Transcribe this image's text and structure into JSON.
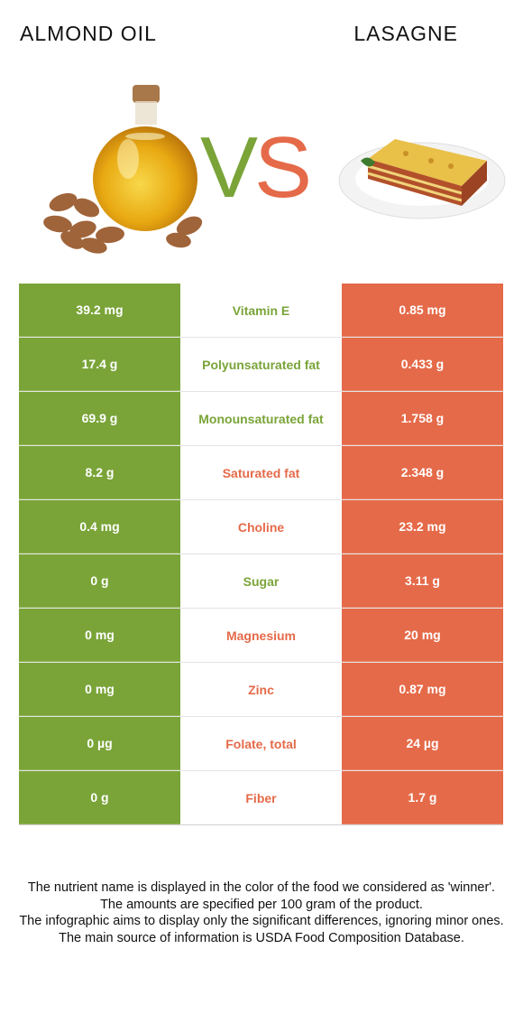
{
  "header": {
    "left_food": "ALMOND OIL",
    "right_food": "LASAGNE",
    "vs_v": "V",
    "vs_s": "S"
  },
  "colors": {
    "left_winner": "#7aa438",
    "right_winner": "#e56a49"
  },
  "rows": [
    {
      "nutrient": "Vitamin E",
      "left": "39.2 mg",
      "right": "0.85 mg",
      "winner": "left"
    },
    {
      "nutrient": "Polyunsaturated fat",
      "left": "17.4 g",
      "right": "0.433 g",
      "winner": "left"
    },
    {
      "nutrient": "Monounsaturated fat",
      "left": "69.9 g",
      "right": "1.758 g",
      "winner": "left"
    },
    {
      "nutrient": "Saturated fat",
      "left": "8.2 g",
      "right": "2.348 g",
      "winner": "right"
    },
    {
      "nutrient": "Choline",
      "left": "0.4 mg",
      "right": "23.2 mg",
      "winner": "right"
    },
    {
      "nutrient": "Sugar",
      "left": "0 g",
      "right": "3.11 g",
      "winner": "left"
    },
    {
      "nutrient": "Magnesium",
      "left": "0 mg",
      "right": "20 mg",
      "winner": "right"
    },
    {
      "nutrient": "Zinc",
      "left": "0 mg",
      "right": "0.87 mg",
      "winner": "right"
    },
    {
      "nutrient": "Folate, total",
      "left": "0 µg",
      "right": "24 µg",
      "winner": "right"
    },
    {
      "nutrient": "Fiber",
      "left": "0 g",
      "right": "1.7 g",
      "winner": "right"
    }
  ],
  "footer": {
    "line1": "The nutrient name is displayed in the color of the food we considered as 'winner'.",
    "line2": "The amounts are specified per 100 gram of the product.",
    "line3": "The infographic aims to display only the significant differences, ignoring minor ones.",
    "line4": "The main source of information is USDA Food Composition Database."
  }
}
